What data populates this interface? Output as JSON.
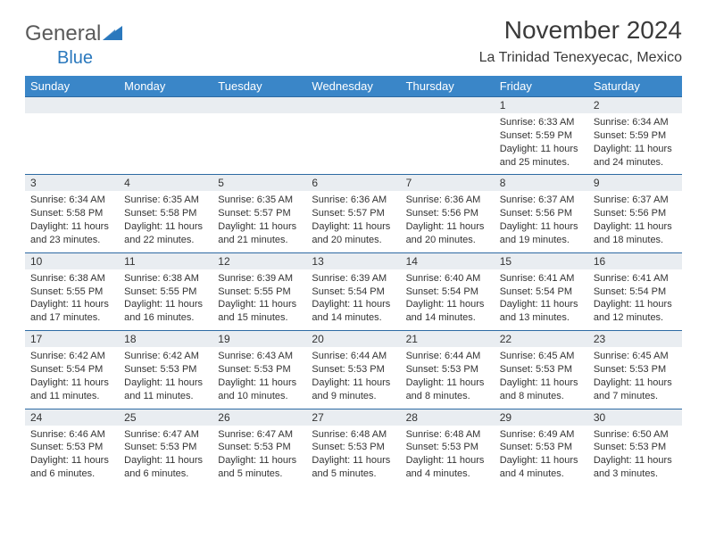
{
  "brand": {
    "part1": "General",
    "part2": "Blue"
  },
  "title": "November 2024",
  "location": "La Trinidad Tenexyecac, Mexico",
  "header_bg": "#3a86c8",
  "dayname_bg": "#e9edf1",
  "border_color": "#2d6aa3",
  "weekdays": [
    "Sunday",
    "Monday",
    "Tuesday",
    "Wednesday",
    "Thursday",
    "Friday",
    "Saturday"
  ],
  "weeks": [
    [
      null,
      null,
      null,
      null,
      null,
      {
        "n": "1",
        "sr": "6:33 AM",
        "ss": "5:59 PM",
        "dl": "11 hours and 25 minutes."
      },
      {
        "n": "2",
        "sr": "6:34 AM",
        "ss": "5:59 PM",
        "dl": "11 hours and 24 minutes."
      }
    ],
    [
      {
        "n": "3",
        "sr": "6:34 AM",
        "ss": "5:58 PM",
        "dl": "11 hours and 23 minutes."
      },
      {
        "n": "4",
        "sr": "6:35 AM",
        "ss": "5:58 PM",
        "dl": "11 hours and 22 minutes."
      },
      {
        "n": "5",
        "sr": "6:35 AM",
        "ss": "5:57 PM",
        "dl": "11 hours and 21 minutes."
      },
      {
        "n": "6",
        "sr": "6:36 AM",
        "ss": "5:57 PM",
        "dl": "11 hours and 20 minutes."
      },
      {
        "n": "7",
        "sr": "6:36 AM",
        "ss": "5:56 PM",
        "dl": "11 hours and 20 minutes."
      },
      {
        "n": "8",
        "sr": "6:37 AM",
        "ss": "5:56 PM",
        "dl": "11 hours and 19 minutes."
      },
      {
        "n": "9",
        "sr": "6:37 AM",
        "ss": "5:56 PM",
        "dl": "11 hours and 18 minutes."
      }
    ],
    [
      {
        "n": "10",
        "sr": "6:38 AM",
        "ss": "5:55 PM",
        "dl": "11 hours and 17 minutes."
      },
      {
        "n": "11",
        "sr": "6:38 AM",
        "ss": "5:55 PM",
        "dl": "11 hours and 16 minutes."
      },
      {
        "n": "12",
        "sr": "6:39 AM",
        "ss": "5:55 PM",
        "dl": "11 hours and 15 minutes."
      },
      {
        "n": "13",
        "sr": "6:39 AM",
        "ss": "5:54 PM",
        "dl": "11 hours and 14 minutes."
      },
      {
        "n": "14",
        "sr": "6:40 AM",
        "ss": "5:54 PM",
        "dl": "11 hours and 14 minutes."
      },
      {
        "n": "15",
        "sr": "6:41 AM",
        "ss": "5:54 PM",
        "dl": "11 hours and 13 minutes."
      },
      {
        "n": "16",
        "sr": "6:41 AM",
        "ss": "5:54 PM",
        "dl": "11 hours and 12 minutes."
      }
    ],
    [
      {
        "n": "17",
        "sr": "6:42 AM",
        "ss": "5:54 PM",
        "dl": "11 hours and 11 minutes."
      },
      {
        "n": "18",
        "sr": "6:42 AM",
        "ss": "5:53 PM",
        "dl": "11 hours and 11 minutes."
      },
      {
        "n": "19",
        "sr": "6:43 AM",
        "ss": "5:53 PM",
        "dl": "11 hours and 10 minutes."
      },
      {
        "n": "20",
        "sr": "6:44 AM",
        "ss": "5:53 PM",
        "dl": "11 hours and 9 minutes."
      },
      {
        "n": "21",
        "sr": "6:44 AM",
        "ss": "5:53 PM",
        "dl": "11 hours and 8 minutes."
      },
      {
        "n": "22",
        "sr": "6:45 AM",
        "ss": "5:53 PM",
        "dl": "11 hours and 8 minutes."
      },
      {
        "n": "23",
        "sr": "6:45 AM",
        "ss": "5:53 PM",
        "dl": "11 hours and 7 minutes."
      }
    ],
    [
      {
        "n": "24",
        "sr": "6:46 AM",
        "ss": "5:53 PM",
        "dl": "11 hours and 6 minutes."
      },
      {
        "n": "25",
        "sr": "6:47 AM",
        "ss": "5:53 PM",
        "dl": "11 hours and 6 minutes."
      },
      {
        "n": "26",
        "sr": "6:47 AM",
        "ss": "5:53 PM",
        "dl": "11 hours and 5 minutes."
      },
      {
        "n": "27",
        "sr": "6:48 AM",
        "ss": "5:53 PM",
        "dl": "11 hours and 5 minutes."
      },
      {
        "n": "28",
        "sr": "6:48 AM",
        "ss": "5:53 PM",
        "dl": "11 hours and 4 minutes."
      },
      {
        "n": "29",
        "sr": "6:49 AM",
        "ss": "5:53 PM",
        "dl": "11 hours and 4 minutes."
      },
      {
        "n": "30",
        "sr": "6:50 AM",
        "ss": "5:53 PM",
        "dl": "11 hours and 3 minutes."
      }
    ]
  ]
}
